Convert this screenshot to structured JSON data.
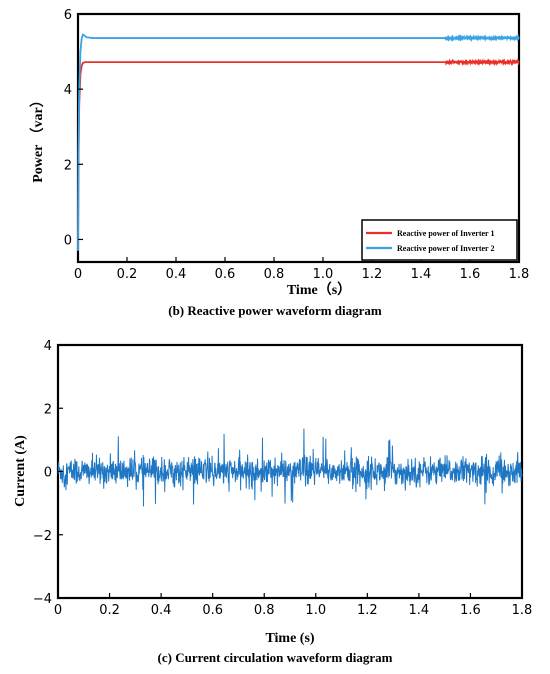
{
  "chart_data": [
    {
      "type": "line",
      "caption": "(b) Reactive power waveform diagram",
      "xlabel": "Time（s）",
      "ylabel": "Power （var）",
      "xlim": [
        0,
        1.8
      ],
      "ylim": [
        -0.6,
        6
      ],
      "xticks": [
        "0",
        "0.2",
        "0.4",
        "0.6",
        "0.8",
        "1.0",
        "1.2",
        "1.4",
        "1.6",
        "1.8"
      ],
      "yticks": [
        "0",
        "2",
        "4",
        "6"
      ],
      "grid": false,
      "legend_position": "bottom-right",
      "series": [
        {
          "name": "Reactive power of Inverter 1",
          "color": "#e8312a",
          "x": [
            0,
            0.002,
            0.005,
            0.01,
            0.015,
            0.02,
            0.03,
            0.05,
            0.1,
            0.3,
            0.6,
            0.9,
            1.2,
            1.5,
            1.8
          ],
          "y": [
            -0.3,
            2.0,
            3.6,
            4.4,
            4.62,
            4.7,
            4.72,
            4.72,
            4.72,
            4.72,
            4.72,
            4.72,
            4.72,
            4.72,
            4.72
          ]
        },
        {
          "name": "Reactive power of Inverter 2",
          "color": "#3aa3e3",
          "x": [
            0,
            0.002,
            0.005,
            0.01,
            0.015,
            0.02,
            0.025,
            0.035,
            0.06,
            0.1,
            0.3,
            0.6,
            0.9,
            1.2,
            1.5,
            1.8
          ],
          "y": [
            -0.3,
            2.2,
            4.0,
            5.0,
            5.35,
            5.45,
            5.43,
            5.38,
            5.36,
            5.36,
            5.36,
            5.36,
            5.36,
            5.36,
            5.36,
            5.36
          ]
        }
      ]
    },
    {
      "type": "line",
      "caption": "(c) Current circulation waveform diagram",
      "xlabel": "Time (s)",
      "ylabel": "Current (A)",
      "xlim": [
        0,
        1.8
      ],
      "ylim": [
        -4,
        4
      ],
      "xticks": [
        "0",
        "0.2",
        "0.4",
        "0.6",
        "0.8",
        "1.0",
        "1.2",
        "1.4",
        "1.6",
        "1.8"
      ],
      "yticks": [
        "4",
        "2",
        "0",
        "−2",
        "−4"
      ],
      "grid": false,
      "series": [
        {
          "color": "#1f77c4",
          "description_of_signal": "noise",
          "mean": 0,
          "typical_amplitude": 0.3,
          "max_value": 1.4,
          "min_value": -1.75,
          "x_start": 0,
          "x_end": 1.8
        }
      ]
    }
  ]
}
